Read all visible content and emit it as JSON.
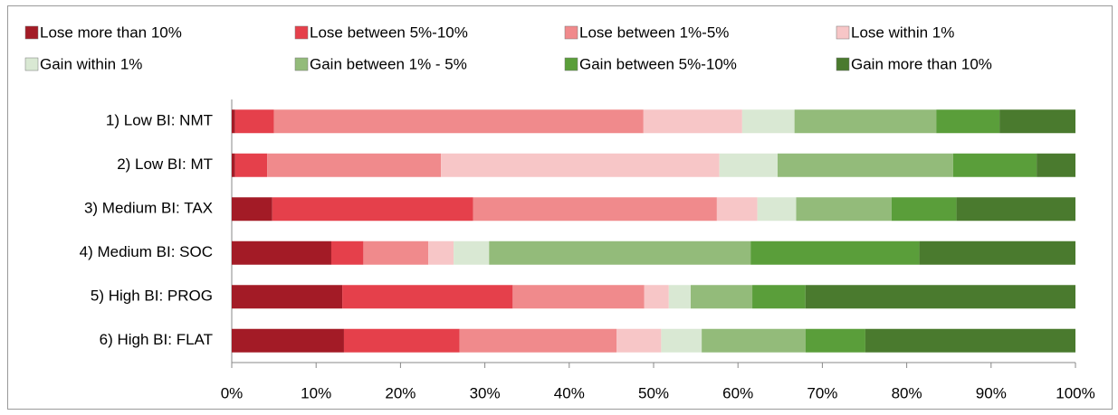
{
  "chart_data": {
    "type": "stacked-barh",
    "categories": [
      "1) Low BI: NMT",
      "2) Low BI: MT",
      "3) Medium BI: TAX",
      "4) Medium BI: SOC",
      "5) High BI: PROG",
      "6) High BI: FLAT"
    ],
    "series": [
      {
        "name": "Lose more than 10%",
        "color": "#a31b26",
        "values": [
          0.4,
          0.4,
          4.8,
          11.8,
          13.1,
          13.3
        ]
      },
      {
        "name": "Lose between 5%-10%",
        "color": "#e5404b",
        "values": [
          4.6,
          3.8,
          23.8,
          3.8,
          20.2,
          13.7
        ]
      },
      {
        "name": "Lose between 1%-5%",
        "color": "#f08a8c",
        "values": [
          43.8,
          20.6,
          28.9,
          7.7,
          15.6,
          18.6
        ]
      },
      {
        "name": "Lose within 1%",
        "color": "#f7c6c7",
        "values": [
          11.7,
          33.0,
          4.8,
          3.0,
          2.9,
          5.3
        ]
      },
      {
        "name": "Gain within 1%",
        "color": "#d9e8d3",
        "values": [
          6.2,
          6.9,
          4.6,
          4.2,
          2.6,
          4.8
        ]
      },
      {
        "name": "Gain between 1% - 5%",
        "color": "#93bb7a",
        "values": [
          16.8,
          20.8,
          11.3,
          31.0,
          7.3,
          12.3
        ]
      },
      {
        "name": "Gain between 5%-10%",
        "color": "#5a9e3a",
        "values": [
          7.5,
          9.9,
          7.7,
          20.0,
          6.3,
          7.1
        ]
      },
      {
        "name": "Gain more than 10%",
        "color": "#4a7a2e",
        "values": [
          9.0,
          4.6,
          14.1,
          18.5,
          32.0,
          24.9
        ]
      }
    ],
    "xlim": [
      0,
      100
    ],
    "xticks": [
      {
        "value": 0,
        "label": "0%"
      },
      {
        "value": 10,
        "label": "10%"
      },
      {
        "value": 20,
        "label": "20%"
      },
      {
        "value": 30,
        "label": "30%"
      },
      {
        "value": 40,
        "label": "40%"
      },
      {
        "value": 50,
        "label": "50%"
      },
      {
        "value": 60,
        "label": "60%"
      },
      {
        "value": 70,
        "label": "70%"
      },
      {
        "value": 80,
        "label": "80%"
      },
      {
        "value": 90,
        "label": "90%"
      },
      {
        "value": 100,
        "label": "100%"
      }
    ],
    "legend_position": "top",
    "grid": false
  }
}
